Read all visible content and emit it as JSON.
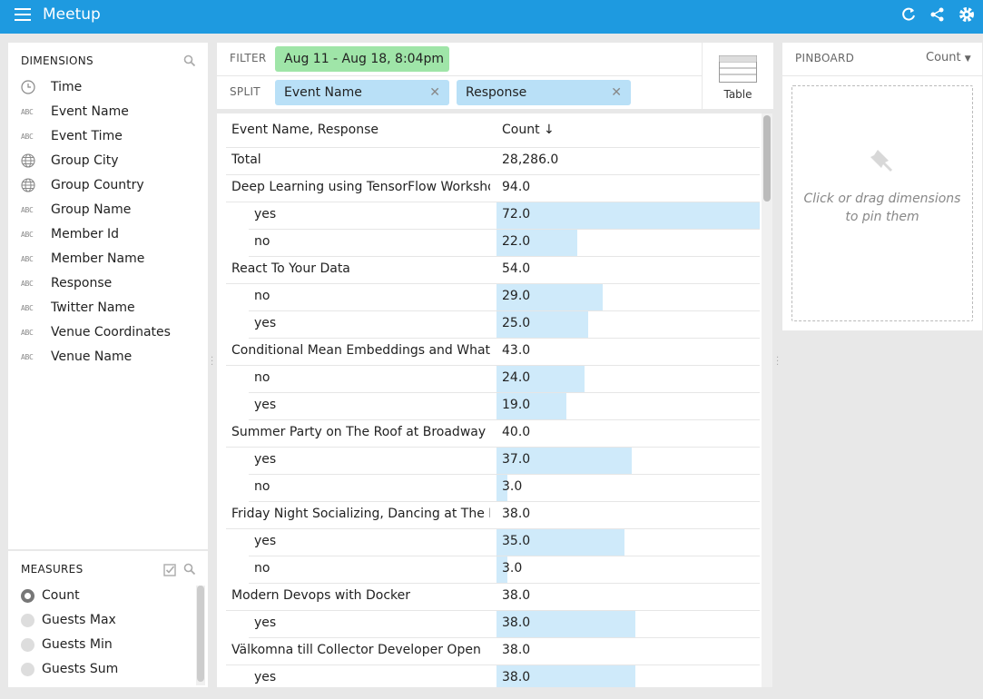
{
  "app": {
    "title": "Meetup"
  },
  "dimensions": {
    "title": "Dimensions",
    "items": [
      {
        "label": "Time",
        "icon": "clock-icon"
      },
      {
        "label": "Event Name",
        "icon": "abc-icon"
      },
      {
        "label": "Event Time",
        "icon": "abc-icon"
      },
      {
        "label": "Group City",
        "icon": "globe-icon"
      },
      {
        "label": "Group Country",
        "icon": "globe-icon"
      },
      {
        "label": "Group Name",
        "icon": "abc-icon"
      },
      {
        "label": "Member Id",
        "icon": "abc-icon"
      },
      {
        "label": "Member Name",
        "icon": "abc-icon"
      },
      {
        "label": "Response",
        "icon": "abc-icon"
      },
      {
        "label": "Twitter Name",
        "icon": "abc-icon"
      },
      {
        "label": "Venue Coordinates",
        "icon": "abc-icon"
      },
      {
        "label": "Venue Name",
        "icon": "abc-icon"
      }
    ]
  },
  "measures": {
    "title": "Measures",
    "items": [
      {
        "label": "Count",
        "selected": true
      },
      {
        "label": "Guests Max",
        "selected": false
      },
      {
        "label": "Guests Min",
        "selected": false
      },
      {
        "label": "Guests Sum",
        "selected": false
      }
    ]
  },
  "filter": {
    "label": "Filter",
    "value": "Aug 11 - Aug 18, 8:04pm"
  },
  "split": {
    "label": "Split",
    "pills": [
      "Event Name",
      "Response"
    ]
  },
  "viz": {
    "label": "Table"
  },
  "pinboard": {
    "title": "Pinboard",
    "measure": "Count",
    "hint_line1": "Click or drag dimensions",
    "hint_line2": "to pin them"
  },
  "table": {
    "header_name": "Event Name, Response",
    "header_count": "Count",
    "max": 72.0,
    "rows": [
      {
        "name": "Total",
        "value": "28,286.0",
        "level": 0
      },
      {
        "name": "Deep Learning using TensorFlow Workshop",
        "value": "94.0",
        "level": 0
      },
      {
        "name": "yes",
        "value": "72.0",
        "num": 72.0,
        "level": 1
      },
      {
        "name": "no",
        "value": "22.0",
        "num": 22.0,
        "level": 1
      },
      {
        "name": "React To Your Data",
        "value": "54.0",
        "level": 0
      },
      {
        "name": "no",
        "value": "29.0",
        "num": 29.0,
        "level": 1
      },
      {
        "name": "yes",
        "value": "25.0",
        "num": 25.0,
        "level": 1
      },
      {
        "name": "Conditional Mean Embeddings and What Deep",
        "value": "43.0",
        "level": 0
      },
      {
        "name": "no",
        "value": "24.0",
        "num": 24.0,
        "level": 1
      },
      {
        "name": "yes",
        "value": "19.0",
        "num": 19.0,
        "level": 1
      },
      {
        "name": "Summer Party on The Roof at Broadway House",
        "value": "40.0",
        "level": 0
      },
      {
        "name": "yes",
        "value": "37.0",
        "num": 37.0,
        "level": 1
      },
      {
        "name": "no",
        "value": "3.0",
        "num": 3.0,
        "level": 1
      },
      {
        "name": "Friday Night Socializing, Dancing at The Roof Ga",
        "value": "38.0",
        "level": 0
      },
      {
        "name": "yes",
        "value": "35.0",
        "num": 35.0,
        "level": 1
      },
      {
        "name": "no",
        "value": "3.0",
        "num": 3.0,
        "level": 1
      },
      {
        "name": "Modern Devops with Docker",
        "value": "38.0",
        "level": 0
      },
      {
        "name": "yes",
        "value": "38.0",
        "num": 38.0,
        "level": 1
      },
      {
        "name": "Välkomna till Collector Developer Open",
        "value": "38.0",
        "level": 0
      },
      {
        "name": "yes",
        "value": "38.0",
        "num": 38.0,
        "level": 1
      }
    ]
  },
  "colors": {
    "topbar": "#1e9ae0",
    "filter_pill": "#9fe5a8",
    "split_pill": "#b9e0f7",
    "bar": "#cfeafa"
  }
}
